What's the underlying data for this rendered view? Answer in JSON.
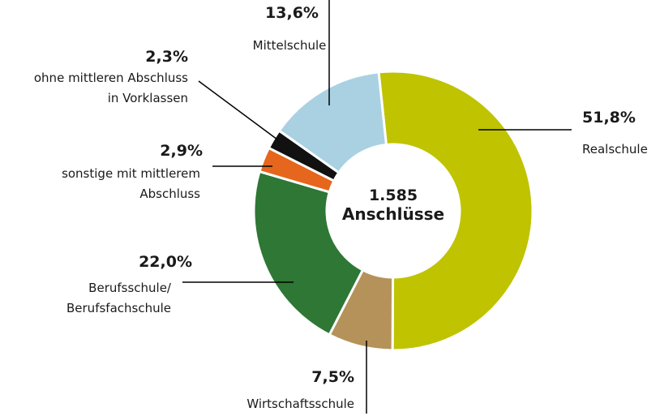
{
  "chart_data": {
    "type": "donut",
    "categories": [
      "Realschule",
      "Wirtschaftsschule",
      "Berufsschule/\nBerufsfachschule",
      "sonstige mit mittlerem\nAbschluss",
      "ohne mittleren Abschluss\nin Vorklassen",
      "Mittelschule"
    ],
    "values": [
      51.8,
      7.5,
      22.0,
      2.9,
      2.3,
      13.6
    ],
    "value_labels": [
      "51,8%",
      "7,5%",
      "22,0%",
      "2,9%",
      "2,3%",
      "13,6%"
    ],
    "colors": [
      "#bfc300",
      "#b5925a",
      "#2e7735",
      "#e5661c",
      "#111111",
      "#a9d1e2"
    ],
    "center_text": [
      "1.585",
      "Anschlüsse"
    ]
  }
}
